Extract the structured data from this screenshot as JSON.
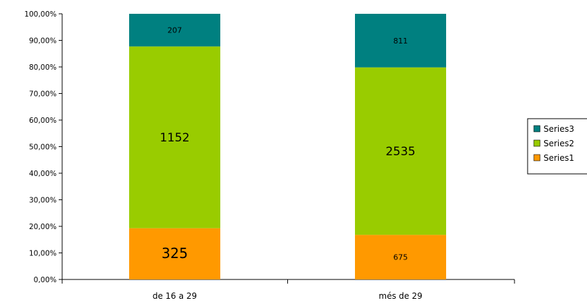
{
  "chart_data": {
    "type": "bar",
    "stacking": "percent",
    "categories": [
      "de 16 a 29",
      "més de 29"
    ],
    "series": [
      {
        "name": "Series1",
        "values": [
          325,
          675
        ],
        "color": "#FF9900"
      },
      {
        "name": "Series2",
        "values": [
          1152,
          2535
        ],
        "color": "#99CC00"
      },
      {
        "name": "Series3",
        "values": [
          207,
          811
        ],
        "color": "#008080"
      }
    ],
    "y_ticks": [
      "0,00%",
      "10,00%",
      "20,00%",
      "30,00%",
      "40,00%",
      "50,00%",
      "60,00%",
      "70,00%",
      "80,00%",
      "90,00%",
      "100,00%"
    ],
    "ylim": [
      0,
      1
    ],
    "grid": false,
    "legend": "right",
    "data_labels": true
  }
}
